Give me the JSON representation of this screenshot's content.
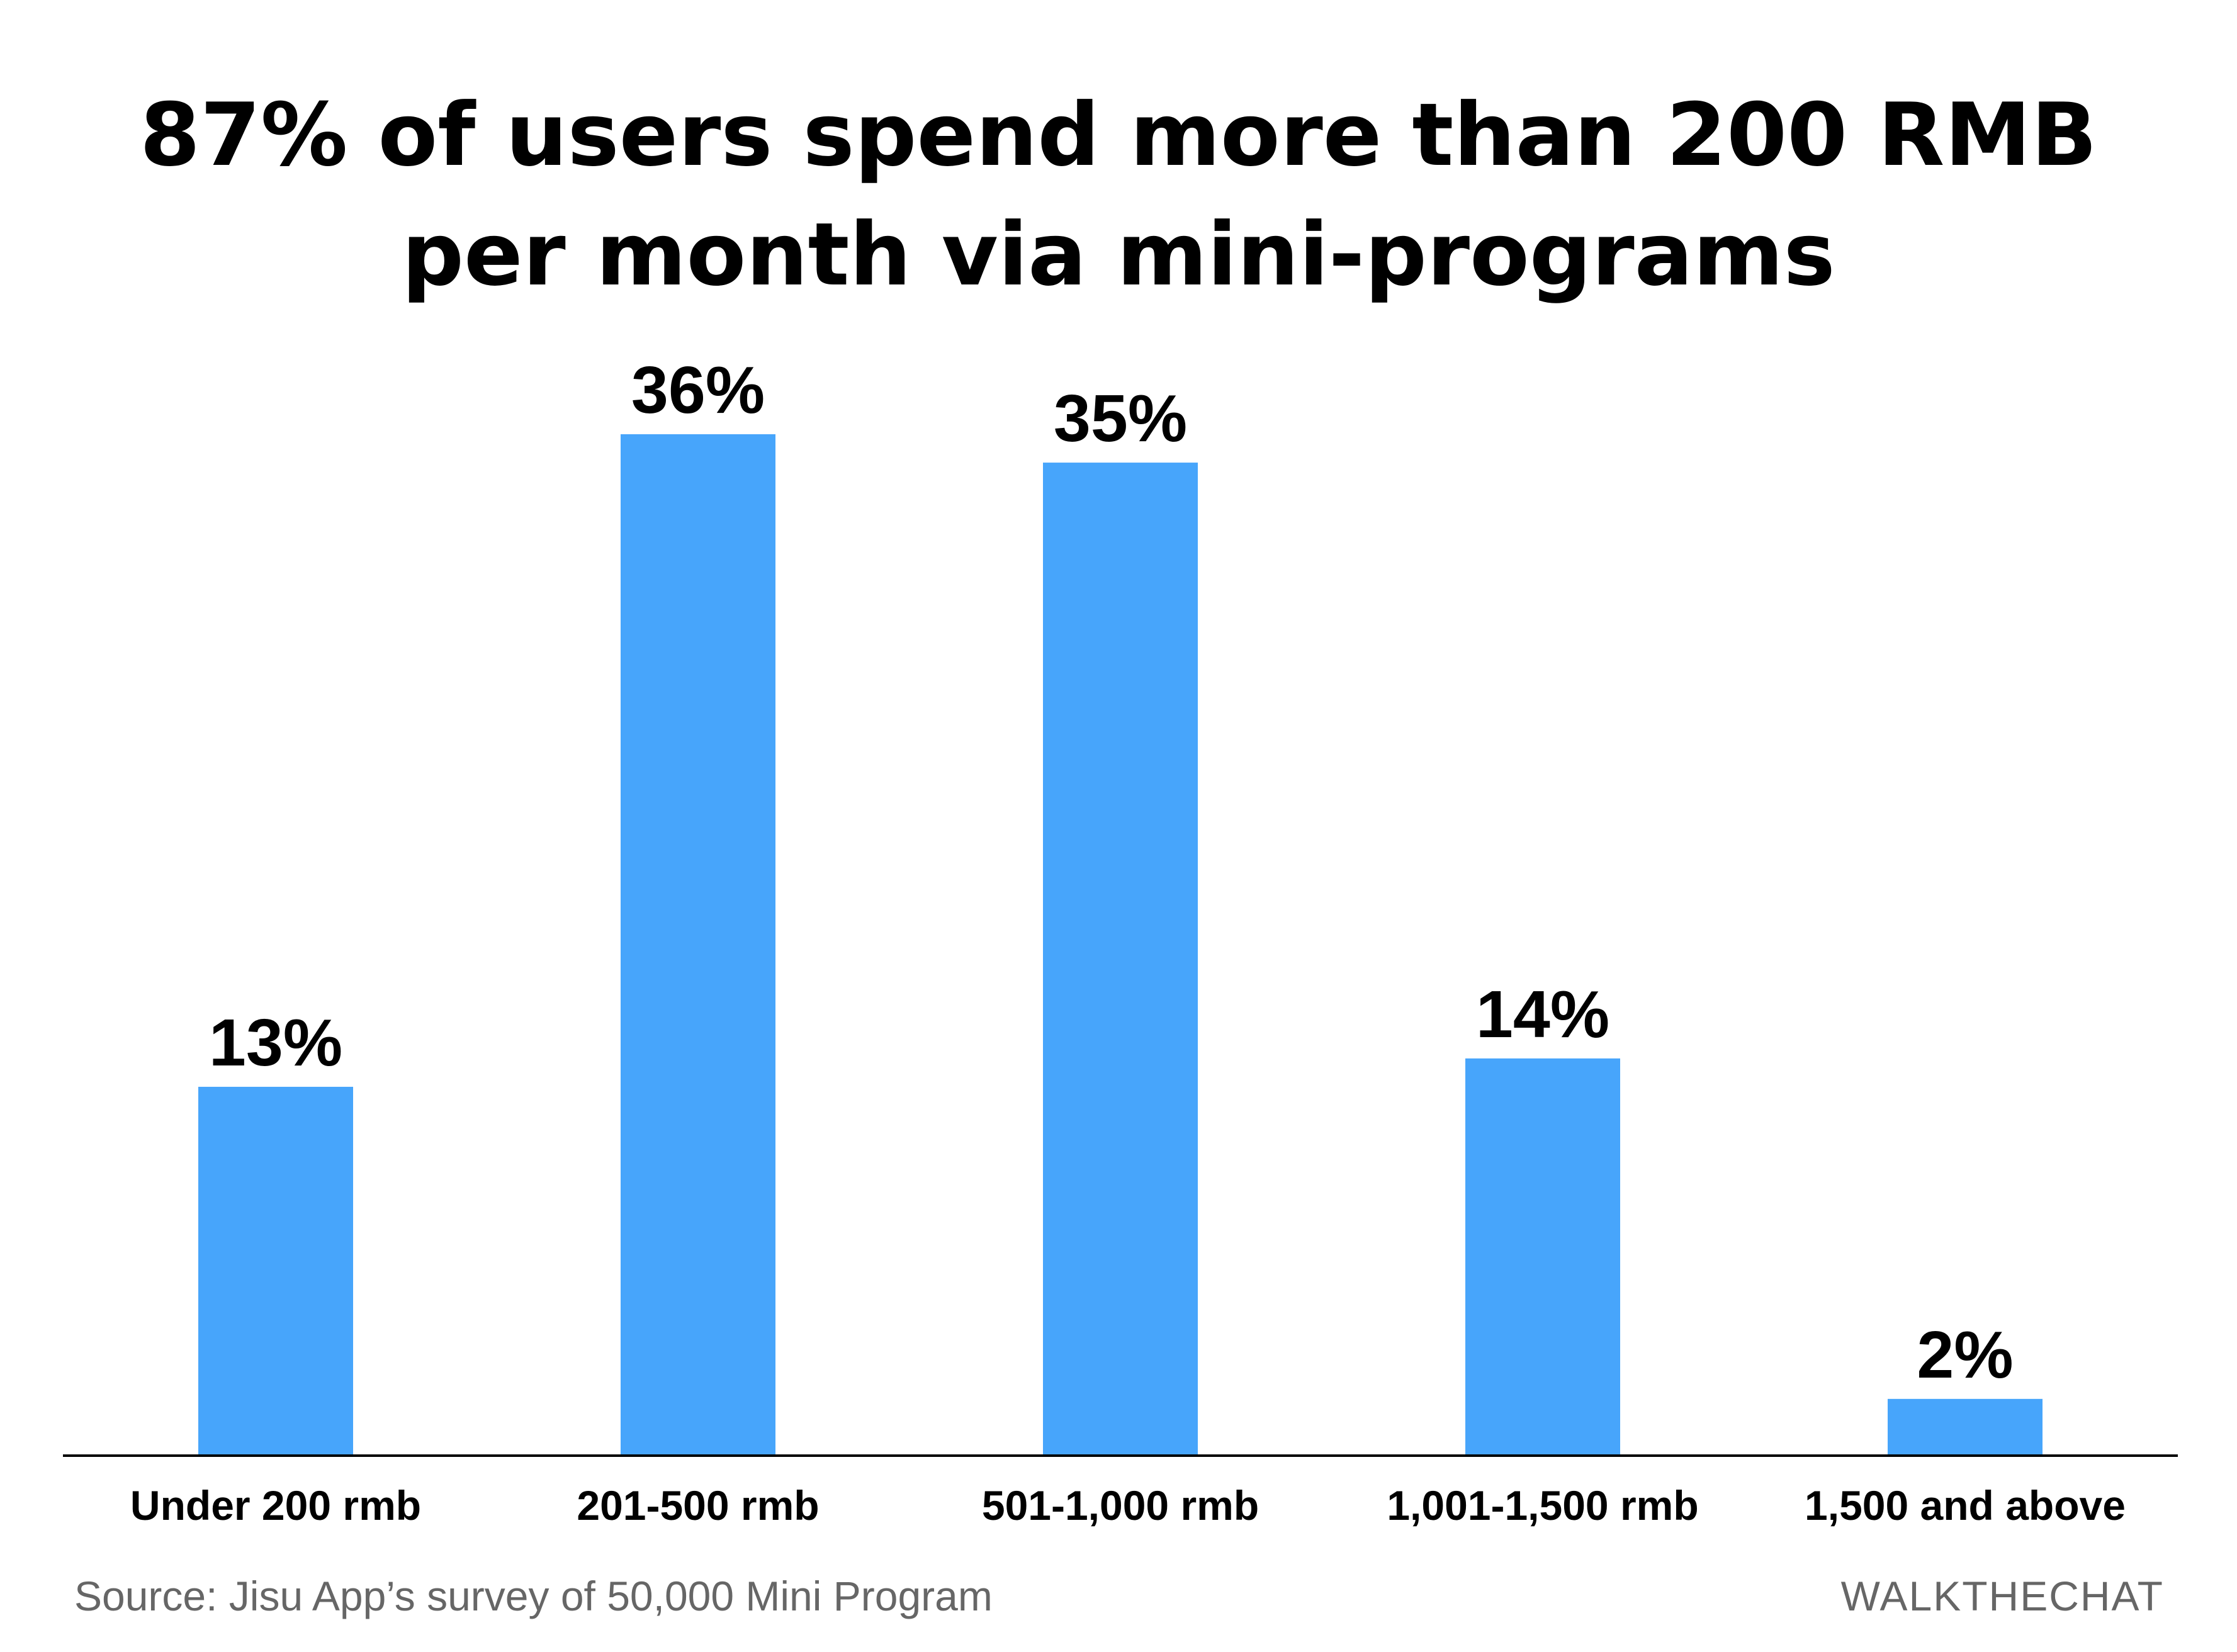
{
  "chart_data": {
    "type": "bar",
    "title_lines": [
      "87% of users spend more than 200 RMB",
      "per month via mini-programs"
    ],
    "categories": [
      "Under 200 rmb",
      "201-500 rmb",
      "501-1,000 rmb",
      "1,001-1,500 rmb",
      "1,500 and above"
    ],
    "values": [
      13,
      36,
      35,
      14,
      2
    ],
    "data_labels": [
      "13%",
      "36%",
      "35%",
      "14%",
      "2%"
    ],
    "unit": "%",
    "ylim": [
      0,
      36
    ],
    "grid": false,
    "bar_color": "#47a5fb",
    "axis_color": "#000000"
  },
  "footer": {
    "source": "Source: Jisu App’s survey of 50,000 Mini Program",
    "brand": "WALKTHECHAT"
  }
}
